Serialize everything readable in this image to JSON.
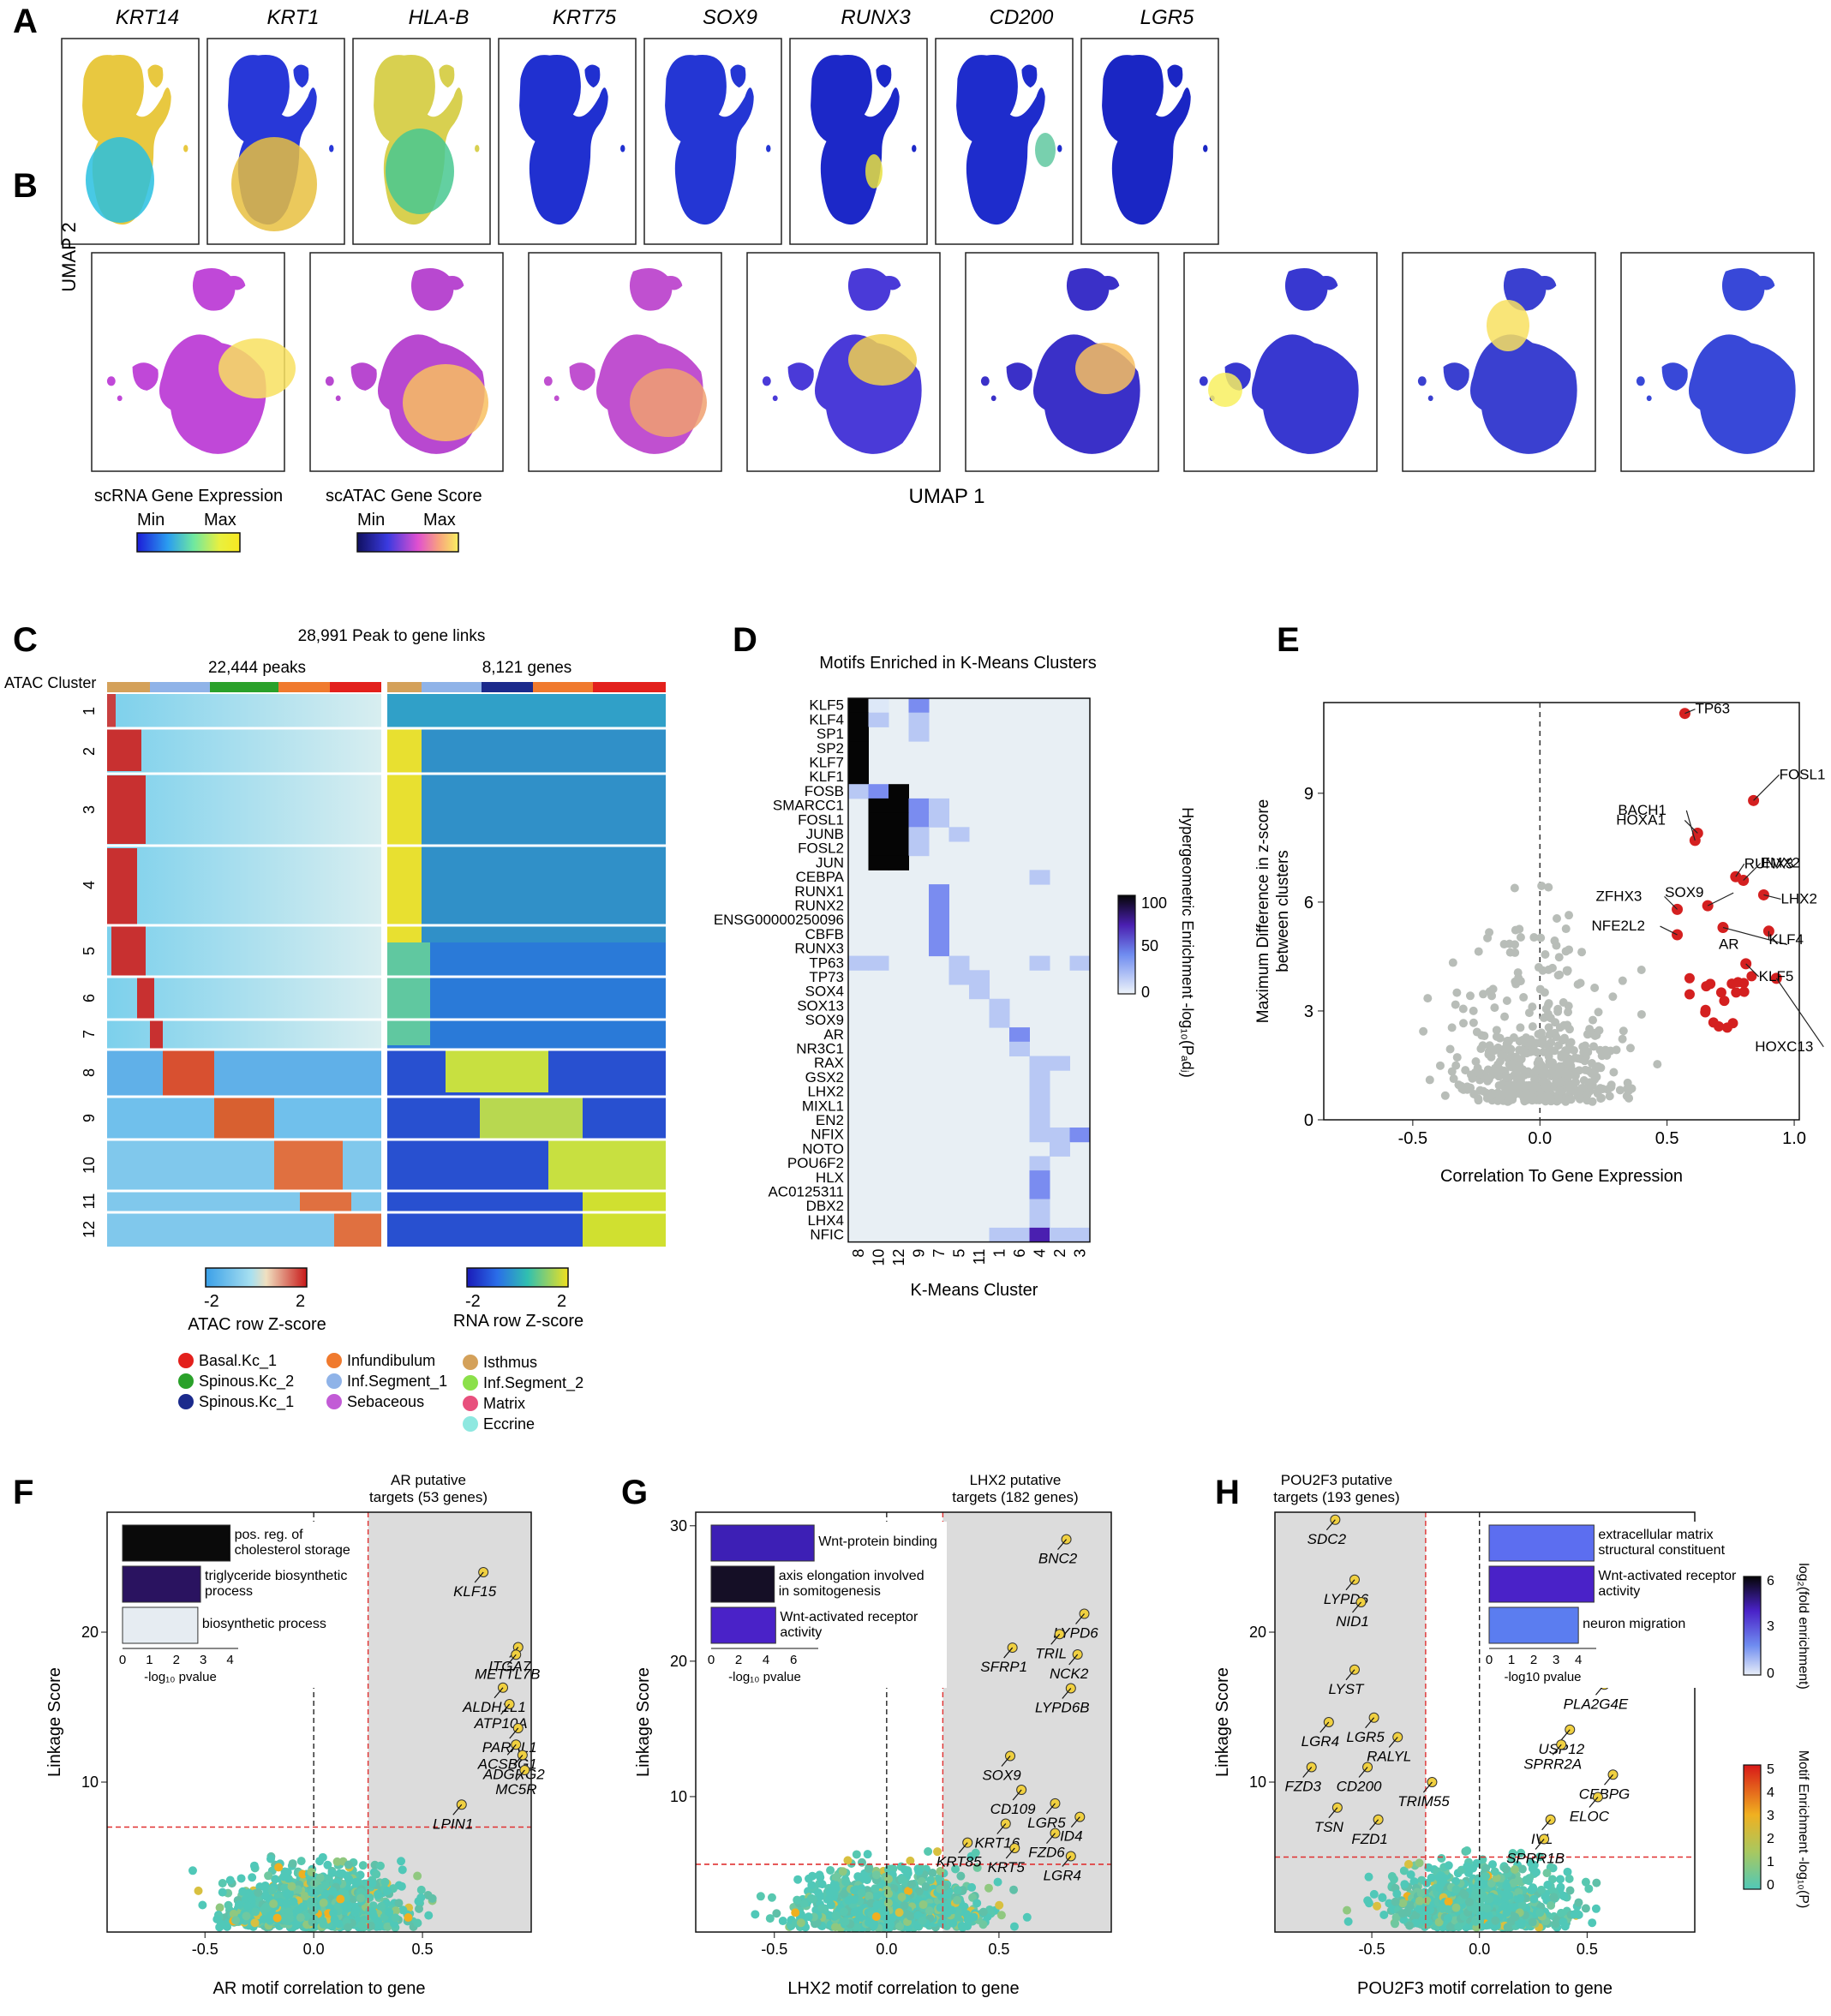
{
  "panel_letters": [
    "A",
    "B",
    "C",
    "D",
    "E",
    "F",
    "G",
    "H"
  ],
  "panelA": {
    "genes": [
      "KRT14",
      "KRT1",
      "HLA-B",
      "KRT75",
      "SOX9",
      "RUNX3",
      "CD200",
      "LGR5"
    ]
  },
  "umap_axes": {
    "y": "UMAP 2",
    "x": "UMAP 1"
  },
  "legendsAB": {
    "rna": {
      "title": "scRNA Gene Expression",
      "min": "Min",
      "max": "Max"
    },
    "atac": {
      "title": "scATAC Gene Score",
      "min": "Min",
      "max": "Max"
    }
  },
  "panelC": {
    "title": "28,991 Peak to gene links",
    "left": "22,444 peaks",
    "right": "8,121 genes",
    "row_label": "ATAC Cluster",
    "clusters": [
      "1",
      "2",
      "3",
      "4",
      "5",
      "6",
      "7",
      "8",
      "9",
      "10",
      "11",
      "12"
    ],
    "atac_legend": {
      "min": "-2",
      "max": "2",
      "title": "ATAC row Z-score"
    },
    "rna_legend": {
      "min": "-2",
      "max": "2",
      "title": "RNA row Z-score"
    },
    "celltypes": [
      {
        "name": "Basal.Kc_1",
        "color": "#e3201c"
      },
      {
        "name": "Spinous.Kc_2",
        "color": "#2aa12a"
      },
      {
        "name": "Spinous.Kc_1",
        "color": "#1b2a8c"
      },
      {
        "name": "Infundibulum",
        "color": "#f07a2e"
      },
      {
        "name": "Inf.Segment_1",
        "color": "#8fb3e8"
      },
      {
        "name": "Sebaceous",
        "color": "#c25bd6"
      },
      {
        "name": "Isthmus",
        "color": "#d4a15a"
      },
      {
        "name": "Inf.Segment_2",
        "color": "#8be04a"
      },
      {
        "name": "Matrix",
        "color": "#e8507d"
      },
      {
        "name": "Eccrine",
        "color": "#8ee8e0"
      }
    ]
  },
  "panelD": {
    "title": "Motifs Enriched in K-Means Clusters",
    "motifs": [
      "KLF5",
      "KLF4",
      "SP1",
      "SP2",
      "KLF7",
      "KLF1",
      "FOSB",
      "SMARCC1",
      "FOSL1",
      "JUNB",
      "FOSL2",
      "JUN",
      "CEBPA",
      "RUNX1",
      "RUNX2",
      "ENSG00000250096",
      "CBFB",
      "RUNX3",
      "TP63",
      "TP73",
      "SOX4",
      "SOX13",
      "SOX9",
      "AR",
      "NR3C1",
      "RAX",
      "GSX2",
      "LHX2",
      "MIXL1",
      "EN2",
      "NFIX",
      "NOTO",
      "POU6F2",
      "HLX",
      "AC0125311",
      "DBX2",
      "LHX4",
      "NFIC"
    ],
    "clusters": [
      "8",
      "10",
      "12",
      "9",
      "7",
      "5",
      "11",
      "1",
      "6",
      "4",
      "2",
      "3"
    ],
    "xlabel": "K-Means Cluster",
    "colorbar": {
      "title": "Hypergeometric Enrichment -log₁₀(Pₐdⱼ)",
      "ticks": [
        "100",
        "50",
        "0"
      ]
    }
  },
  "chart_data": [
    {
      "panel": "E",
      "type": "scatter",
      "xlabel": "Correlation To Gene Expression",
      "ylabel": "Maximum Difference in z-score between clusters",
      "xlim": [
        -0.85,
        1.02
      ],
      "ylim": [
        0,
        11.5
      ],
      "xticks": [
        "-0.5",
        "0.0",
        "0.5",
        "1.0"
      ],
      "yticks": [
        "0",
        "3",
        "6",
        "9"
      ],
      "labeled_points": [
        {
          "label": "TP63",
          "x": 0.57,
          "y": 11.2
        },
        {
          "label": "FOSL1",
          "x": 0.84,
          "y": 8.8
        },
        {
          "label": "HOXA1",
          "x": 0.62,
          "y": 7.9
        },
        {
          "label": "BACH1",
          "x": 0.61,
          "y": 7.7
        },
        {
          "label": "RUNX3",
          "x": 0.77,
          "y": 6.7
        },
        {
          "label": "EMX2",
          "x": 0.8,
          "y": 6.6
        },
        {
          "label": "LHX2",
          "x": 0.88,
          "y": 6.2
        },
        {
          "label": "SOX9",
          "x": 0.66,
          "y": 5.9
        },
        {
          "label": "ZFHX3",
          "x": 0.54,
          "y": 5.8
        },
        {
          "label": "NFE2L2",
          "x": 0.54,
          "y": 5.1
        },
        {
          "label": "AR",
          "x": 0.72,
          "y": 5.3
        },
        {
          "label": "KLF4",
          "x": 0.9,
          "y": 5.2
        },
        {
          "label": "KLF5",
          "x": 0.81,
          "y": 4.3
        },
        {
          "label": "HOXC13",
          "x": 0.93,
          "y": 3.9
        }
      ]
    },
    {
      "panel": "F",
      "type": "scatter",
      "title": "AR putative targets (53 genes)",
      "xlabel": "AR motif correlation to gene",
      "ylabel": "Linkage Score",
      "xlim": [
        -0.95,
        1.0
      ],
      "ylim": [
        0,
        28
      ],
      "xticks": [
        "-0.5",
        "0.0",
        "0.5"
      ],
      "yticks": [
        "10",
        "20"
      ],
      "threshold": {
        "x": 0.25,
        "y": 7
      },
      "genes": [
        {
          "label": "KLF15",
          "x": 0.78,
          "y": 24.0
        },
        {
          "label": "ITGA7",
          "x": 0.94,
          "y": 19.0
        },
        {
          "label": "METTL7B",
          "x": 0.93,
          "y": 18.5
        },
        {
          "label": "ALDH1L1",
          "x": 0.87,
          "y": 16.3
        },
        {
          "label": "ATP10A",
          "x": 0.9,
          "y": 15.2
        },
        {
          "label": "PARAL1",
          "x": 0.94,
          "y": 13.6
        },
        {
          "label": "ACSBG1",
          "x": 0.93,
          "y": 12.5
        },
        {
          "label": "ADGRG2",
          "x": 0.96,
          "y": 11.8
        },
        {
          "label": "MC5R",
          "x": 0.97,
          "y": 10.8
        },
        {
          "label": "LPIN1",
          "x": 0.68,
          "y": 8.5
        }
      ],
      "go_terms": [
        {
          "label": "pos. reg. of cholesterol storage",
          "value": 4.0,
          "color": "#0a0a0a"
        },
        {
          "label": "triglyceride biosynthetic process",
          "value": 2.9,
          "color": "#2a1360"
        },
        {
          "label": "biosynthetic process",
          "value": 2.8,
          "color": "#e6ecf2"
        }
      ],
      "go_axis": {
        "label": "-log₁₀ pvalue",
        "ticks": [
          "0",
          "1",
          "2",
          "3",
          "4"
        ]
      }
    },
    {
      "panel": "G",
      "type": "scatter",
      "title": "LHX2 putative targets (182 genes)",
      "xlabel": "LHX2 motif correlation to gene",
      "ylabel": "Linkage Score",
      "xlim": [
        -0.85,
        1.0
      ],
      "ylim": [
        0,
        31
      ],
      "xticks": [
        "-0.5",
        "0.0",
        "0.5"
      ],
      "yticks": [
        "10",
        "20",
        "30"
      ],
      "threshold": {
        "x": 0.25,
        "y": 5
      },
      "genes": [
        {
          "label": "BNC2",
          "x": 0.8,
          "y": 29.0
        },
        {
          "label": "LYPD6",
          "x": 0.88,
          "y": 23.5
        },
        {
          "label": "TRIL",
          "x": 0.77,
          "y": 22.0
        },
        {
          "label": "NCK2",
          "x": 0.85,
          "y": 20.5
        },
        {
          "label": "SFRP1",
          "x": 0.56,
          "y": 21.0
        },
        {
          "label": "LYPD6B",
          "x": 0.82,
          "y": 18.0
        },
        {
          "label": "SOX9",
          "x": 0.55,
          "y": 13.0
        },
        {
          "label": "CD109",
          "x": 0.6,
          "y": 10.5
        },
        {
          "label": "LGR5",
          "x": 0.75,
          "y": 9.5
        },
        {
          "label": "ID4",
          "x": 0.86,
          "y": 8.5
        },
        {
          "label": "KRT16",
          "x": 0.53,
          "y": 8.0
        },
        {
          "label": "FZD6",
          "x": 0.75,
          "y": 7.3
        },
        {
          "label": "KRT85",
          "x": 0.36,
          "y": 6.6
        },
        {
          "label": "KRT5",
          "x": 0.57,
          "y": 6.2
        },
        {
          "label": "LGR4",
          "x": 0.82,
          "y": 5.6
        }
      ],
      "go_terms": [
        {
          "label": "Wnt-protein binding",
          "value": 7.5,
          "color": "#3d1fb5"
        },
        {
          "label": "axis elongation involved in somitogenesis",
          "value": 4.6,
          "color": "#150f26"
        },
        {
          "label": "Wnt-activated receptor activity",
          "value": 4.7,
          "color": "#4a22c8"
        }
      ],
      "go_axis": {
        "label": "-log₁₀ pvalue",
        "ticks": [
          "0",
          "2",
          "4",
          "6"
        ]
      }
    },
    {
      "panel": "H",
      "type": "scatter",
      "title": "POU2F3 putative targets (193 genes)",
      "xlabel": "POU2F3 motif correlation to gene",
      "ylabel": "Linkage Score",
      "xlim": [
        -0.95,
        1.0
      ],
      "ylim": [
        0,
        28
      ],
      "xticks": [
        "-0.5",
        "0.0",
        "0.5"
      ],
      "yticks": [
        "10",
        "20"
      ],
      "threshold": {
        "x": -0.25,
        "y": 5
      },
      "genes": [
        {
          "label": "SDC2",
          "x": -0.67,
          "y": 27.5
        },
        {
          "label": "LYPD6",
          "x": -0.58,
          "y": 23.5
        },
        {
          "label": "NID1",
          "x": -0.55,
          "y": 22.0
        },
        {
          "label": "LYST",
          "x": -0.58,
          "y": 17.5
        },
        {
          "label": "LGR5",
          "x": -0.49,
          "y": 14.3
        },
        {
          "label": "LGR4",
          "x": -0.7,
          "y": 14.0
        },
        {
          "label": "RALYL",
          "x": -0.38,
          "y": 13.0
        },
        {
          "label": "FZD3",
          "x": -0.78,
          "y": 11.0
        },
        {
          "label": "CD200",
          "x": -0.52,
          "y": 11.0
        },
        {
          "label": "TRIM55",
          "x": -0.22,
          "y": 10.0
        },
        {
          "label": "TSN",
          "x": -0.66,
          "y": 8.3
        },
        {
          "label": "FZD1",
          "x": -0.47,
          "y": 7.5
        },
        {
          "label": "PLA2G4E",
          "x": 0.58,
          "y": 16.5
        },
        {
          "label": "USP12",
          "x": 0.42,
          "y": 13.5
        },
        {
          "label": "SPRR2A",
          "x": 0.38,
          "y": 12.5
        },
        {
          "label": "CEBPG",
          "x": 0.62,
          "y": 10.5
        },
        {
          "label": "ELOC",
          "x": 0.55,
          "y": 9.0
        },
        {
          "label": "IVL",
          "x": 0.33,
          "y": 7.5
        },
        {
          "label": "SPRR1B",
          "x": 0.3,
          "y": 6.2
        }
      ],
      "go_terms": [
        {
          "label": "extracellular matrix structural constituent",
          "value": 4.7,
          "color": "#5c6ef0"
        },
        {
          "label": "Wnt-activated receptor activity",
          "value": 4.7,
          "color": "#4a22c8"
        },
        {
          "label": "neuron migration",
          "value": 4.0,
          "color": "#5b7df0"
        }
      ],
      "go_axis": {
        "label": "-log10 pvalue",
        "ticks": [
          "0",
          "1",
          "2",
          "3",
          "4"
        ]
      }
    }
  ],
  "colorbarFGH": {
    "fold": {
      "title": "log₂(fold enrichment)",
      "ticks": [
        "6",
        "3",
        "0"
      ]
    },
    "motif": {
      "title": "Motif Enrichment -log₁₀(P)",
      "ticks": [
        "5",
        "4",
        "3",
        "2",
        "1",
        "0"
      ]
    }
  }
}
